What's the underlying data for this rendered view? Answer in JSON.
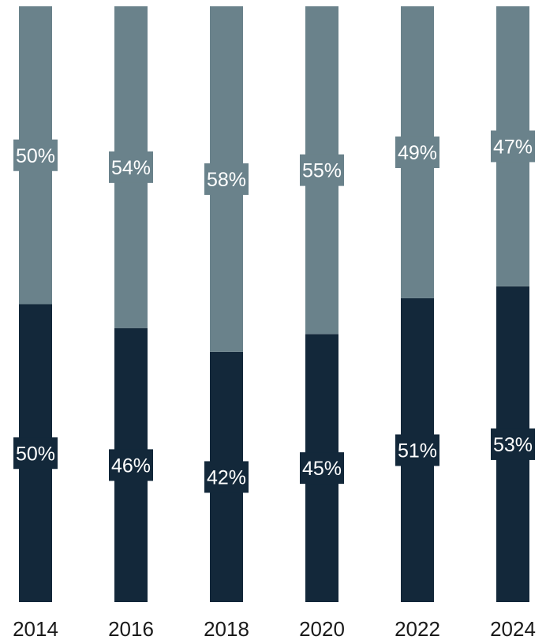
{
  "chart_data": {
    "type": "bar",
    "stacked": "percent",
    "categories": [
      "2014",
      "2016",
      "2018",
      "2020",
      "2022",
      "2024"
    ],
    "series": [
      {
        "values": [
          50,
          46,
          42,
          45,
          51,
          53
        ],
        "color": "#13283a"
      },
      {
        "values": [
          50,
          54,
          58,
          55,
          49,
          47
        ],
        "color": "#6a828b"
      }
    ],
    "value_labels": [
      [
        "50%",
        "46%",
        "42%",
        "45%",
        "51%",
        "53%"
      ],
      [
        "50%",
        "54%",
        "58%",
        "55%",
        "49%",
        "47%"
      ]
    ],
    "ylim": [
      0,
      100
    ],
    "grid": false,
    "legend": "none"
  }
}
